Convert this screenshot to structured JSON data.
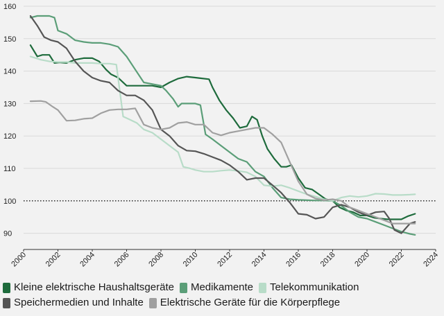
{
  "chart_data": {
    "type": "line",
    "title": "",
    "xlabel": "",
    "ylabel": "",
    "xlim": [
      2000,
      2024
    ],
    "ylim": [
      85,
      160
    ],
    "x_ticks": [
      "2000",
      "2002",
      "2004",
      "2006",
      "2008",
      "2010",
      "2012",
      "2014",
      "2016",
      "2018",
      "2020",
      "2022",
      "2024"
    ],
    "y_ticks": [
      "90",
      "100",
      "110",
      "120",
      "130",
      "140",
      "150",
      "160"
    ],
    "reference_line": {
      "y": 100,
      "style": "dotted"
    },
    "grid": "horizontal",
    "legend_position": "bottom",
    "series": [
      {
        "name": "Kleine elektrische Haushaltsgeräte",
        "color": "#1e6b3c",
        "x": [
          2000.4,
          2000.8,
          2001.1,
          2001.5,
          2001.8,
          2002.1,
          2002.5,
          2003.0,
          2003.5,
          2004.0,
          2004.4,
          2004.8,
          2005.1,
          2005.5,
          2006.0,
          2006.5,
          2007.0,
          2007.5,
          2008.0,
          2008.5,
          2009.0,
          2009.5,
          2010.0,
          2010.3,
          2010.8,
          2011.0,
          2011.4,
          2011.8,
          2012.2,
          2012.6,
          2013.0,
          2013.3,
          2013.6,
          2013.9,
          2014.2,
          2014.6,
          2015.0,
          2015.3,
          2015.6,
          2016.0,
          2016.4,
          2016.8,
          2017.2,
          2017.6,
          2018.0,
          2018.4,
          2018.8,
          2019.2,
          2019.6,
          2020.0,
          2020.4,
          2020.8,
          2021.2,
          2021.6,
          2022.0,
          2022.4,
          2022.8
        ],
        "y": [
          148,
          144.5,
          145,
          145,
          142.5,
          142.7,
          142.5,
          143.5,
          144,
          144,
          143,
          140.5,
          139,
          138,
          135.5,
          135.5,
          135.5,
          135.5,
          135,
          136.5,
          137.7,
          138.3,
          138,
          137.8,
          137.5,
          135,
          131,
          128,
          125.5,
          122.5,
          123,
          126,
          125,
          120,
          116,
          113,
          110.5,
          110.5,
          111,
          107,
          104,
          103.5,
          102,
          100.5,
          100,
          98,
          97,
          96.5,
          95.5,
          95.5,
          94.8,
          94.5,
          94.3,
          94.3,
          94.3,
          95.3,
          96
        ]
      },
      {
        "name": "Medikamente",
        "color": "#5b9e78",
        "x": [
          2000.4,
          2000.8,
          2001.2,
          2001.5,
          2001.8,
          2002.0,
          2002.5,
          2003.0,
          2003.5,
          2004.0,
          2004.5,
          2005.0,
          2005.5,
          2006.0,
          2006.5,
          2007.0,
          2007.5,
          2008.0,
          2008.3,
          2008.7,
          2009.0,
          2009.2,
          2009.5,
          2010.0,
          2010.3,
          2010.6,
          2011.0,
          2011.5,
          2012.0,
          2012.5,
          2013.0,
          2013.5,
          2014.0,
          2014.5,
          2015.0,
          2015.5,
          2016.0,
          2016.5,
          2017.0,
          2017.5,
          2018.0,
          2018.5,
          2019.0,
          2019.5,
          2020.0,
          2020.5,
          2021.0,
          2021.5,
          2022.0,
          2022.5,
          2022.8
        ],
        "y": [
          156.5,
          157,
          157,
          157,
          156.5,
          152.5,
          151.5,
          149.5,
          149,
          148.7,
          148.7,
          148.3,
          147.5,
          144.5,
          140.5,
          136.5,
          136,
          135.5,
          134,
          131.5,
          129,
          130,
          130,
          130,
          129.5,
          120.5,
          119,
          117,
          115,
          113,
          112,
          109,
          107.5,
          104,
          101,
          100.5,
          100.3,
          100.2,
          100.1,
          100.1,
          100,
          98.5,
          96.5,
          95,
          94.5,
          93.5,
          92.5,
          91.5,
          90.5,
          89.8,
          89.5
        ]
      },
      {
        "name": "Telekommunikation",
        "color": "#b8dcc8",
        "x": [
          2000.4,
          2001.0,
          2001.5,
          2002.0,
          2002.5,
          2003.0,
          2003.5,
          2004.0,
          2004.5,
          2005.0,
          2005.4,
          2005.8,
          2006.2,
          2006.6,
          2007.0,
          2007.5,
          2008.0,
          2008.5,
          2009.0,
          2009.3,
          2009.7,
          2010.0,
          2010.5,
          2011.0,
          2011.5,
          2012.0,
          2012.5,
          2013.0,
          2013.5,
          2014.0,
          2014.5,
          2015.0,
          2015.5,
          2016.0,
          2016.5,
          2017.0,
          2017.5,
          2018.0,
          2018.5,
          2019.0,
          2019.5,
          2020.0,
          2020.5,
          2021.0,
          2021.5,
          2022.0,
          2022.5,
          2022.8
        ],
        "y": [
          144.5,
          143.5,
          143,
          142.8,
          142.8,
          142.5,
          142.5,
          142.5,
          142.3,
          142.3,
          142,
          126,
          125,
          124,
          122,
          121,
          119,
          117,
          115,
          110.5,
          110,
          109.5,
          109,
          109,
          109.3,
          109.5,
          109.2,
          108.8,
          107.5,
          104.8,
          104.5,
          104.8,
          104,
          103,
          102,
          101.3,
          100.5,
          100,
          101,
          101.5,
          101.2,
          101.5,
          102.2,
          102.1,
          101.8,
          101.8,
          101.9,
          102
        ]
      },
      {
        "name": "Speichermedien und Inhalte",
        "color": "#555555",
        "x": [
          2000.4,
          2000.8,
          2001.2,
          2001.6,
          2002.0,
          2002.5,
          2003.0,
          2003.5,
          2004.0,
          2004.5,
          2005.0,
          2005.5,
          2006.0,
          2006.5,
          2007.0,
          2007.5,
          2008.0,
          2008.5,
          2009.0,
          2009.5,
          2010.0,
          2010.5,
          2011.0,
          2011.5,
          2012.0,
          2012.5,
          2013.0,
          2013.5,
          2014.0,
          2014.5,
          2015.0,
          2015.5,
          2016.0,
          2016.5,
          2017.0,
          2017.5,
          2018.0,
          2018.5,
          2019.0,
          2019.5,
          2020.0,
          2020.5,
          2021.0,
          2021.3,
          2021.6,
          2022.0,
          2022.5,
          2022.8
        ],
        "y": [
          157,
          154,
          150.5,
          149.5,
          149,
          147,
          143,
          140,
          138,
          137,
          136.5,
          134,
          132.5,
          132.5,
          131,
          128,
          122,
          120,
          117,
          115.5,
          115.3,
          114.5,
          113.5,
          112.5,
          111,
          109,
          106.5,
          107,
          107,
          104.8,
          102.5,
          99.5,
          96,
          95.7,
          94.5,
          95,
          98,
          98.8,
          98,
          96.5,
          95.5,
          96.5,
          96.7,
          94.5,
          91,
          90,
          93,
          93.5
        ]
      },
      {
        "name": "Elektrische Geräte für die Körperpflege",
        "color": "#a0a0a0",
        "x": [
          2000.4,
          2001.0,
          2001.3,
          2001.7,
          2002.0,
          2002.5,
          2003.0,
          2003.5,
          2004.0,
          2004.5,
          2005.0,
          2005.5,
          2006.0,
          2006.5,
          2007.0,
          2007.5,
          2008.0,
          2008.5,
          2009.0,
          2009.5,
          2010.0,
          2010.5,
          2011.0,
          2011.5,
          2012.0,
          2012.5,
          2013.0,
          2013.5,
          2014.0,
          2014.5,
          2015.0,
          2015.5,
          2016.0,
          2016.5,
          2017.0,
          2017.5,
          2018.0,
          2018.5,
          2019.0,
          2019.5,
          2020.0,
          2020.5,
          2021.0,
          2021.5,
          2022.0,
          2022.5,
          2022.8
        ],
        "y": [
          130.7,
          130.8,
          130.5,
          129,
          128,
          124.7,
          124.8,
          125.3,
          125.5,
          127,
          128,
          128.2,
          128.2,
          128.5,
          123.5,
          122.5,
          122,
          122.5,
          124,
          124.3,
          123.5,
          123.5,
          121,
          120.2,
          121,
          121.5,
          122,
          122.5,
          122.5,
          120.5,
          118,
          112,
          106,
          102,
          100.7,
          100.2,
          100.5,
          100,
          98,
          97,
          96,
          95,
          94,
          93,
          93,
          93,
          93
        ]
      }
    ]
  }
}
